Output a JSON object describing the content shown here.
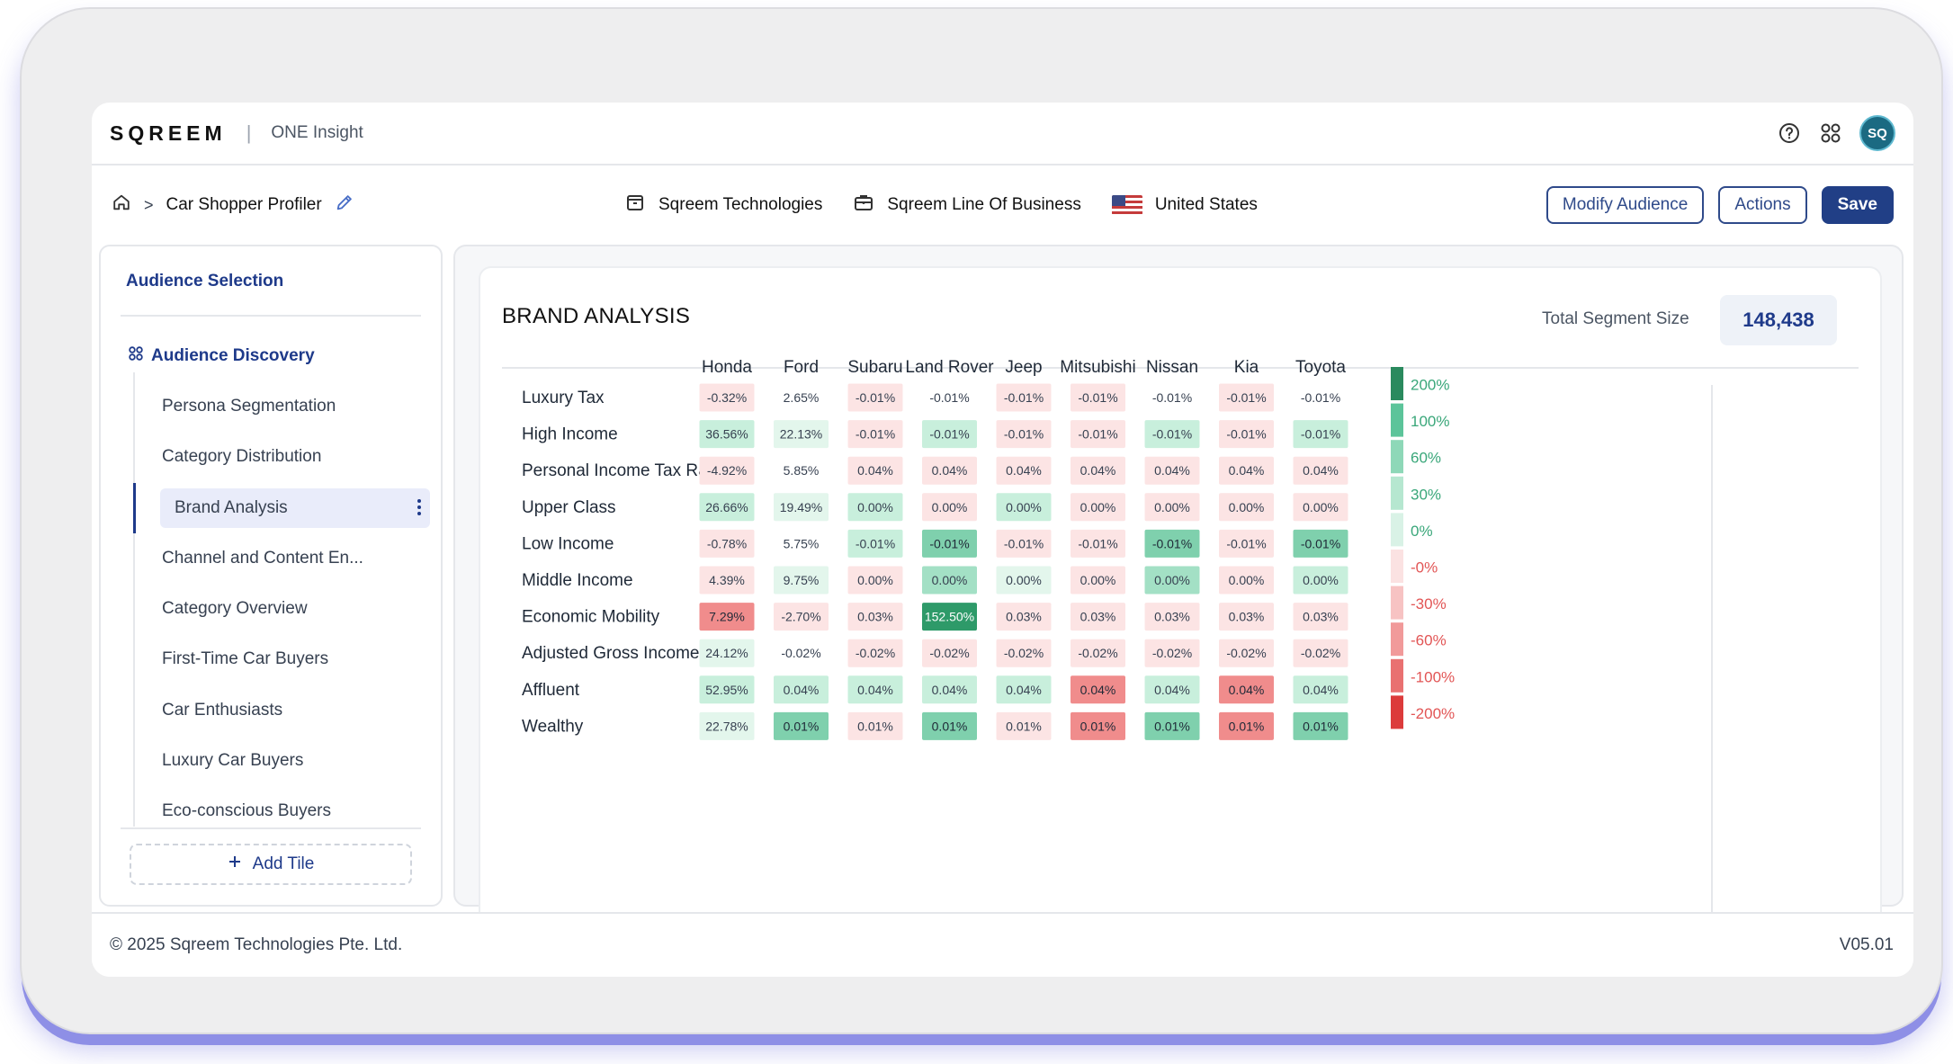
{
  "app": {
    "logo": "SQREEM",
    "separator": "|",
    "product_name": "ONE Insight",
    "avatar_initials": "SQ",
    "help_icon": "help-circle-icon",
    "apps_icon": "apps-grid-icon"
  },
  "breadcrumb": {
    "home_icon": "home-icon",
    "separator": ">",
    "title": "Car Shopper Profiler",
    "edit_icon": "pencil-icon"
  },
  "context": {
    "company": "Sqreem Technologies",
    "line_of_business": "Sqreem Line Of Business",
    "country": "United States"
  },
  "actions": {
    "modify_audience": "Modify Audience",
    "actions": "Actions",
    "save": "Save"
  },
  "sidebar": {
    "title": "Audience Selection",
    "group_label": "Audience Discovery",
    "items": [
      {
        "label": "Persona Segmentation",
        "active": false
      },
      {
        "label": "Category Distribution",
        "active": false
      },
      {
        "label": "Brand Analysis",
        "active": true
      },
      {
        "label": "Channel and Content En...",
        "active": false
      },
      {
        "label": "Category Overview",
        "active": false
      },
      {
        "label": "First-Time Car Buyers",
        "active": false
      },
      {
        "label": "Car Enthusiasts",
        "active": false
      },
      {
        "label": "Luxury Car Buyers",
        "active": false
      },
      {
        "label": "Eco-conscious Buyers",
        "active": false
      }
    ],
    "add_tile": "Add Tile",
    "add_icon": "plus-icon"
  },
  "brand_analysis": {
    "title": "BRAND ANALYSIS",
    "segment_size_label": "Total Segment Size",
    "segment_size_value": "148,438"
  },
  "chart_data": {
    "type": "heatmap",
    "columns": [
      "Honda",
      "Ford",
      "Subaru",
      "Land Rover",
      "Jeep",
      "Mitsubishi",
      "Nissan",
      "Kia",
      "Toyota"
    ],
    "rows": [
      {
        "label": "Luxury Tax",
        "cells": [
          {
            "text": "-0.32%",
            "level": "-0%"
          },
          {
            "text": "2.65%",
            "level": "none"
          },
          {
            "text": "-0.01%",
            "level": "-0%"
          },
          {
            "text": "-0.01%",
            "level": "none"
          },
          {
            "text": "-0.01%",
            "level": "-0%"
          },
          {
            "text": "-0.01%",
            "level": "-0%"
          },
          {
            "text": "-0.01%",
            "level": "none"
          },
          {
            "text": "-0.01%",
            "level": "-0%"
          },
          {
            "text": "-0.01%",
            "level": "none"
          }
        ]
      },
      {
        "label": "High Income",
        "cells": [
          {
            "text": "36.56%",
            "level": "30%"
          },
          {
            "text": "22.13%",
            "level": "0%"
          },
          {
            "text": "-0.01%",
            "level": "-0%"
          },
          {
            "text": "-0.01%",
            "level": "30%"
          },
          {
            "text": "-0.01%",
            "level": "-0%"
          },
          {
            "text": "-0.01%",
            "level": "-0%"
          },
          {
            "text": "-0.01%",
            "level": "30%"
          },
          {
            "text": "-0.01%",
            "level": "-0%"
          },
          {
            "text": "-0.01%",
            "level": "30%"
          }
        ]
      },
      {
        "label": "Personal Income Tax Rate",
        "cells": [
          {
            "text": "-4.92%",
            "level": "-0%"
          },
          {
            "text": "5.85%",
            "level": "none"
          },
          {
            "text": "0.04%",
            "level": "-0%"
          },
          {
            "text": "0.04%",
            "level": "-0%"
          },
          {
            "text": "0.04%",
            "level": "-0%"
          },
          {
            "text": "0.04%",
            "level": "-0%"
          },
          {
            "text": "0.04%",
            "level": "-0%"
          },
          {
            "text": "0.04%",
            "level": "-0%"
          },
          {
            "text": "0.04%",
            "level": "-0%"
          }
        ]
      },
      {
        "label": "Upper Class",
        "cells": [
          {
            "text": "26.66%",
            "level": "30%"
          },
          {
            "text": "19.49%",
            "level": "0%"
          },
          {
            "text": "0.00%",
            "level": "30%"
          },
          {
            "text": "0.00%",
            "level": "-0%"
          },
          {
            "text": "0.00%",
            "level": "30%"
          },
          {
            "text": "0.00%",
            "level": "-0%"
          },
          {
            "text": "0.00%",
            "level": "-0%"
          },
          {
            "text": "0.00%",
            "level": "-0%"
          },
          {
            "text": "0.00%",
            "level": "-0%"
          }
        ]
      },
      {
        "label": "Low Income",
        "cells": [
          {
            "text": "-0.78%",
            "level": "-0%"
          },
          {
            "text": "5.75%",
            "level": "none"
          },
          {
            "text": "-0.01%",
            "level": "30%"
          },
          {
            "text": "-0.01%",
            "level": "100%"
          },
          {
            "text": "-0.01%",
            "level": "-0%"
          },
          {
            "text": "-0.01%",
            "level": "-0%"
          },
          {
            "text": "-0.01%",
            "level": "100%"
          },
          {
            "text": "-0.01%",
            "level": "-0%"
          },
          {
            "text": "-0.01%",
            "level": "100%"
          }
        ]
      },
      {
        "label": "Middle Income",
        "cells": [
          {
            "text": "4.39%",
            "level": "-0%"
          },
          {
            "text": "9.75%",
            "level": "0%"
          },
          {
            "text": "0.00%",
            "level": "-0%"
          },
          {
            "text": "0.00%",
            "level": "60%"
          },
          {
            "text": "0.00%",
            "level": "0%"
          },
          {
            "text": "0.00%",
            "level": "-0%"
          },
          {
            "text": "0.00%",
            "level": "60%"
          },
          {
            "text": "0.00%",
            "level": "-0%"
          },
          {
            "text": "0.00%",
            "level": "30%"
          }
        ]
      },
      {
        "label": "Economic Mobility",
        "cells": [
          {
            "text": "7.29%",
            "level": "-100%"
          },
          {
            "text": "-2.70%",
            "level": "-0%"
          },
          {
            "text": "0.03%",
            "level": "-0%"
          },
          {
            "text": "152.50%",
            "level": "200%"
          },
          {
            "text": "0.03%",
            "level": "-0%"
          },
          {
            "text": "0.03%",
            "level": "-0%"
          },
          {
            "text": "0.03%",
            "level": "-0%"
          },
          {
            "text": "0.03%",
            "level": "-0%"
          },
          {
            "text": "0.03%",
            "level": "-0%"
          }
        ]
      },
      {
        "label": "Adjusted Gross Income",
        "cells": [
          {
            "text": "24.12%",
            "level": "0%"
          },
          {
            "text": "-0.02%",
            "level": "none"
          },
          {
            "text": "-0.02%",
            "level": "-0%"
          },
          {
            "text": "-0.02%",
            "level": "-0%"
          },
          {
            "text": "-0.02%",
            "level": "-0%"
          },
          {
            "text": "-0.02%",
            "level": "-0%"
          },
          {
            "text": "-0.02%",
            "level": "-0%"
          },
          {
            "text": "-0.02%",
            "level": "-0%"
          },
          {
            "text": "-0.02%",
            "level": "-0%"
          }
        ]
      },
      {
        "label": "Affluent",
        "cells": [
          {
            "text": "52.95%",
            "level": "30%"
          },
          {
            "text": "0.04%",
            "level": "30%"
          },
          {
            "text": "0.04%",
            "level": "30%"
          },
          {
            "text": "0.04%",
            "level": "30%"
          },
          {
            "text": "0.04%",
            "level": "30%"
          },
          {
            "text": "0.04%",
            "level": "-100%"
          },
          {
            "text": "0.04%",
            "level": "30%"
          },
          {
            "text": "0.04%",
            "level": "-100%"
          },
          {
            "text": "0.04%",
            "level": "30%"
          }
        ]
      },
      {
        "label": "Wealthy",
        "cells": [
          {
            "text": "22.78%",
            "level": "0%"
          },
          {
            "text": "0.01%",
            "level": "100%"
          },
          {
            "text": "0.01%",
            "level": "-0%"
          },
          {
            "text": "0.01%",
            "level": "100%"
          },
          {
            "text": "0.01%",
            "level": "-0%"
          },
          {
            "text": "0.01%",
            "level": "-100%"
          },
          {
            "text": "0.01%",
            "level": "100%"
          },
          {
            "text": "0.01%",
            "level": "-100%"
          },
          {
            "text": "0.01%",
            "level": "100%"
          }
        ]
      }
    ],
    "legend": [
      {
        "label": "200%",
        "color": "#2a8a5e",
        "text_color": "#3aa77a"
      },
      {
        "label": "100%",
        "color": "#5cc49a",
        "text_color": "#3aa77a"
      },
      {
        "label": "60%",
        "color": "#8ed8b8",
        "text_color": "#3aa77a"
      },
      {
        "label": "30%",
        "color": "#b6e7d0",
        "text_color": "#3aa77a"
      },
      {
        "label": "0%",
        "color": "#d9f2e6",
        "text_color": "#3aa77a"
      },
      {
        "label": "-0%",
        "color": "#fbe2e2",
        "text_color": "#e25555"
      },
      {
        "label": "-30%",
        "color": "#f7c3c3",
        "text_color": "#e25555"
      },
      {
        "label": "-60%",
        "color": "#f19a9a",
        "text_color": "#e25555"
      },
      {
        "label": "-100%",
        "color": "#e97171",
        "text_color": "#e25555"
      },
      {
        "label": "-200%",
        "color": "#dc3b3b",
        "text_color": "#e25555"
      }
    ],
    "level_colors": {
      "200%": "#2e9a69",
      "100%": "#7fd0ad",
      "60%": "#a3e0c5",
      "30%": "#c8efdc",
      "0%": "#e3f6ec",
      "-0%": "#fce4e4",
      "-100%": "#f08c8c",
      "none": "#ffffff"
    }
  },
  "footer": {
    "copyright": "© 2025 Sqreem Technologies Pte. Ltd.",
    "version": "V05.01"
  }
}
